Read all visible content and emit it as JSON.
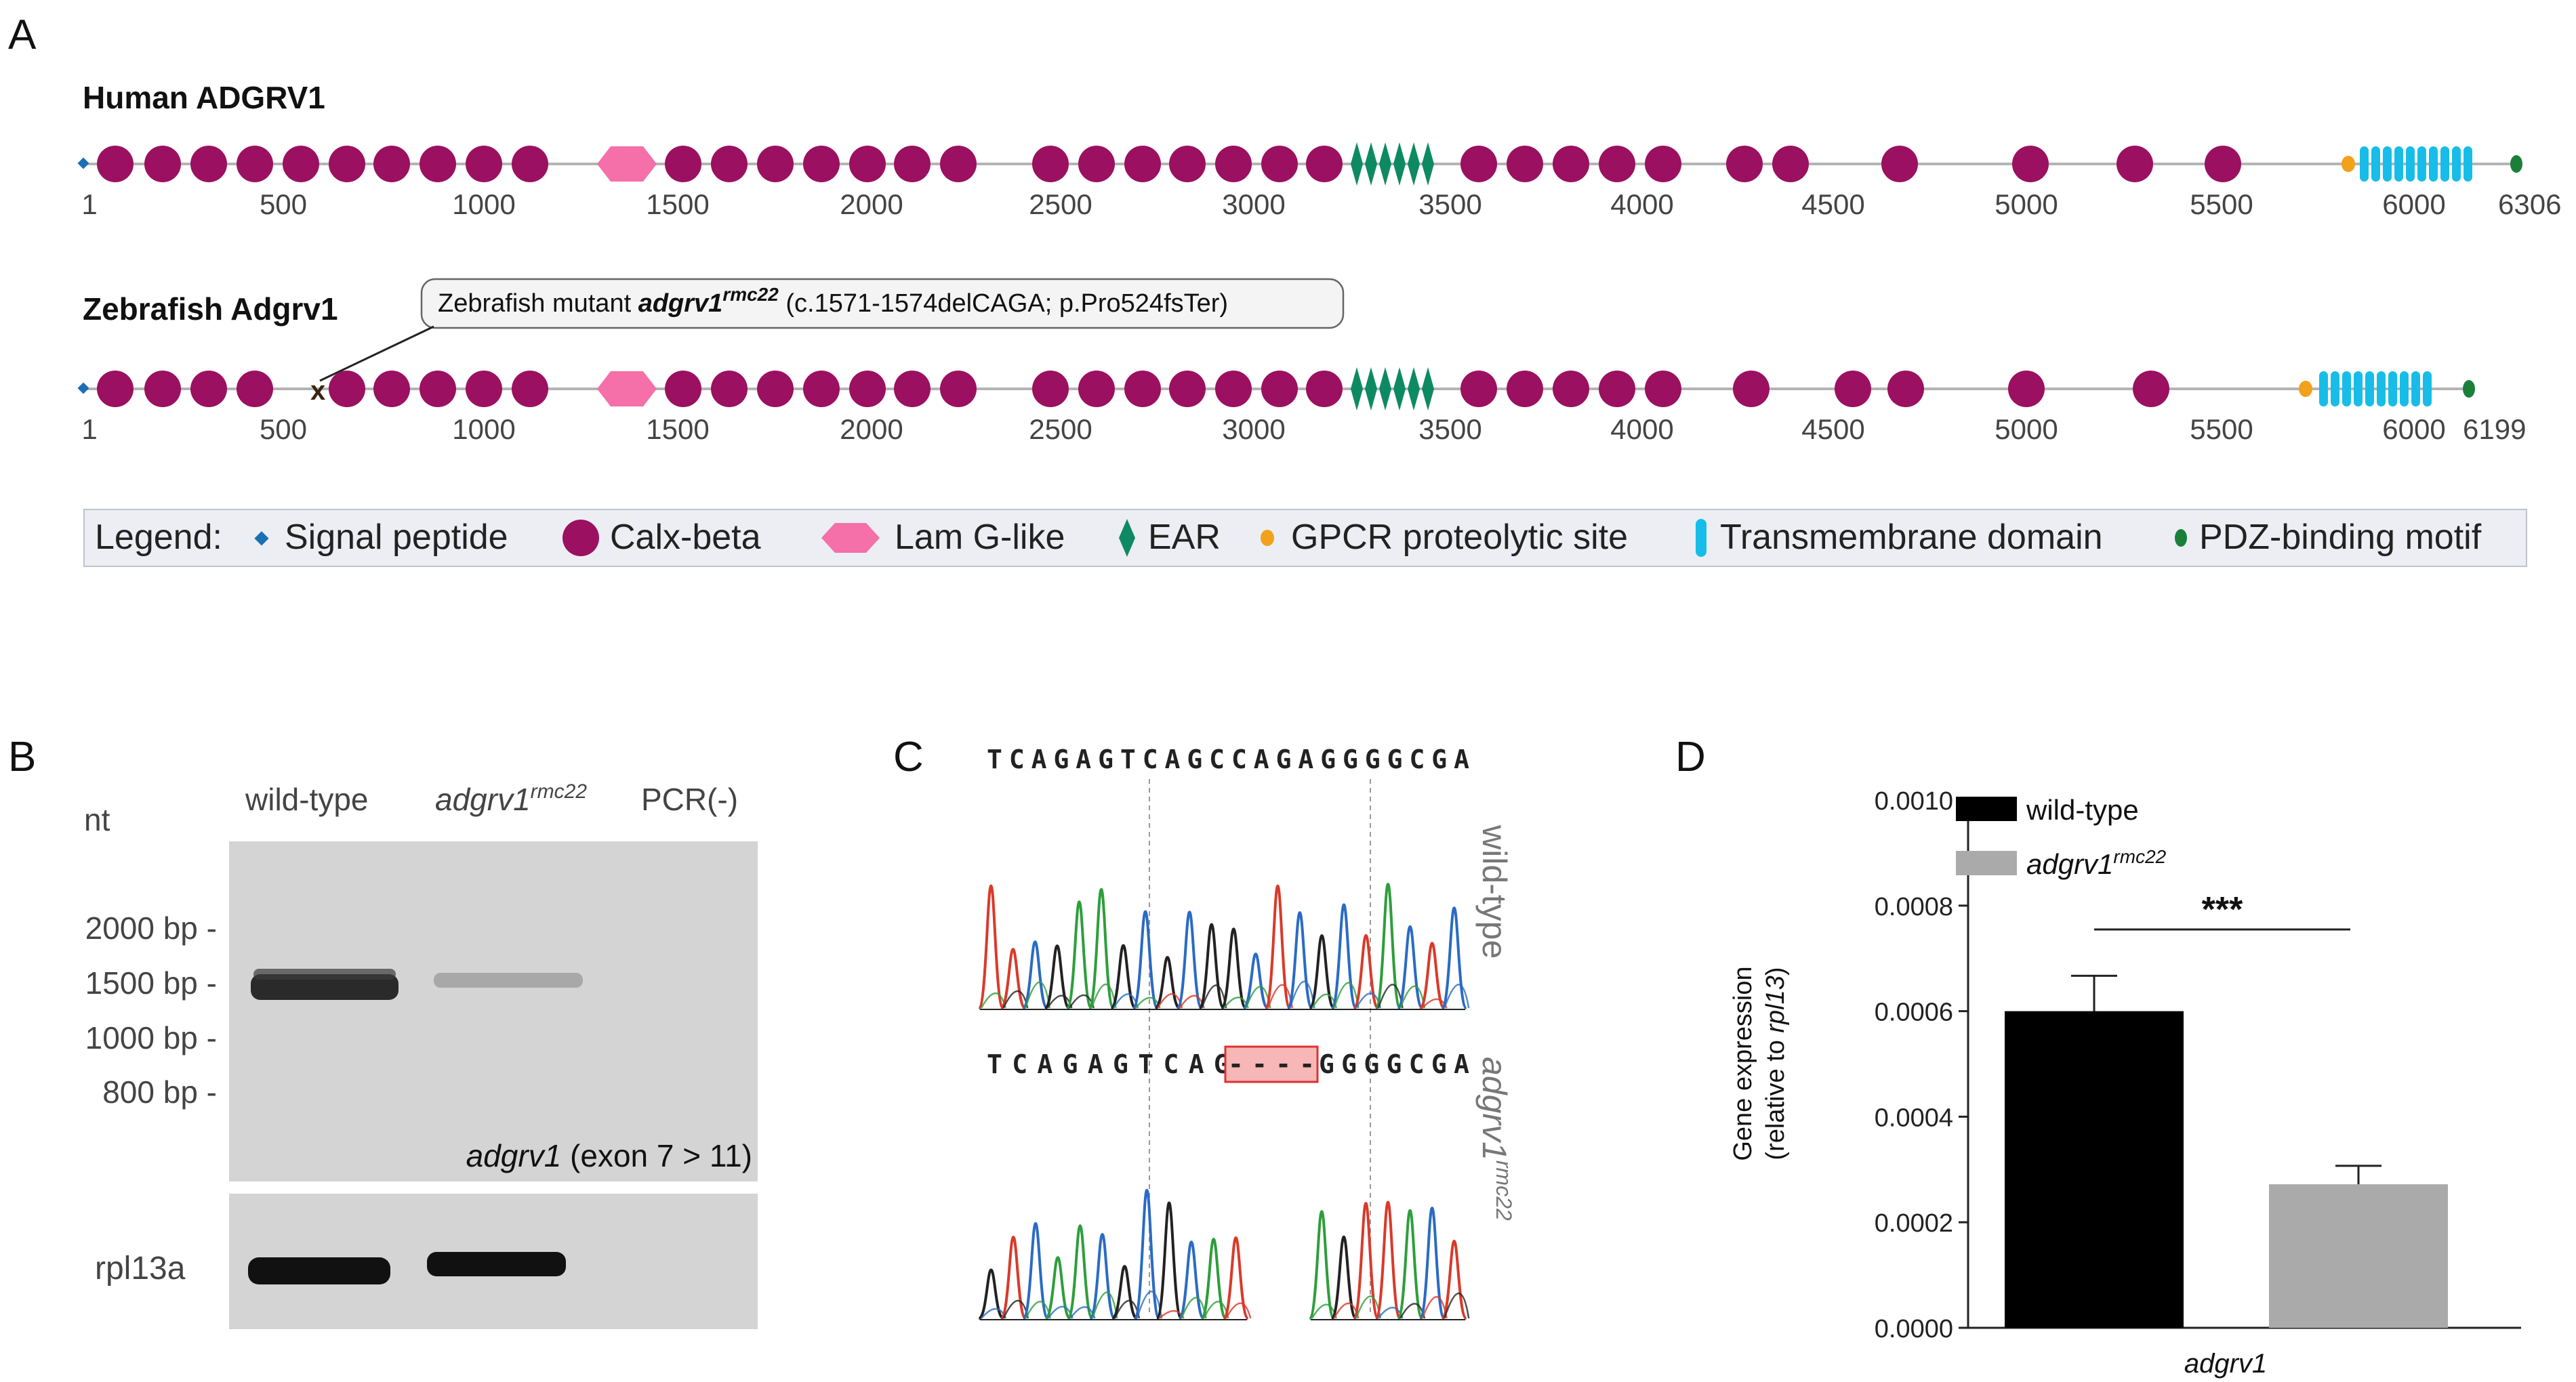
{
  "panels": {
    "a": "A",
    "b": "B",
    "c": "C",
    "d": "D"
  },
  "colors": {
    "calx": "#9b1060",
    "lamg": "#f56fa8",
    "ear": "#0e8a62",
    "signal": "#1a6fb5",
    "gpcr": "#f2a11c",
    "tm": "#17bde8",
    "pdz": "#1b7f3a",
    "backbone": "#b4b4b4",
    "legend_bg": "#eceef3",
    "wt_bar": "#000000",
    "mut_bar": "#aaaaaa"
  },
  "panel_a": {
    "human": {
      "title": "Human ADGRV1",
      "length_label": "6306",
      "ticks": [
        "1",
        "500",
        "1000",
        "1500",
        "2000",
        "2500",
        "3000",
        "3500",
        "4000",
        "4500",
        "5000",
        "5500",
        "6000"
      ]
    },
    "zebrafish": {
      "title": "Zebrafish Adgrv1",
      "length_label": "6199",
      "ticks": [
        "1",
        "500",
        "1000",
        "1500",
        "2000",
        "2500",
        "3000",
        "3500",
        "4000",
        "4500",
        "5000",
        "5500",
        "6000"
      ],
      "mutation_mark": "x",
      "callout_prefix": "Zebrafish mutant ",
      "callout_gene": "adgrv1",
      "callout_allele": "rmc22",
      "callout_suffix": " (c.1571-1574delCAGA; p.Pro524fsTer)"
    },
    "legend": {
      "title": "Legend:",
      "items": [
        "Signal peptide",
        "Calx-beta",
        "Lam G-like",
        "EAR",
        "GPCR proteolytic site",
        "Transmembrane domain",
        "PDZ-binding motif"
      ]
    }
  },
  "panel_b": {
    "unit_label": "nt",
    "lanes": [
      "wild-type",
      "adgrv1",
      "PCR(-)"
    ],
    "lane_superscript": "rmc22",
    "ladder": [
      "2000 bp -",
      "1500 bp -",
      "1000 bp -",
      "800 bp -"
    ],
    "gel_gene": "adgrv1",
    "gel_caption": " (exon 7 > 11)",
    "control_label": "rpl13a"
  },
  "panel_c": {
    "wt_sequence": "TCAGAGTCAGCCAGAGGGGCGA",
    "mut_prefix": "TCAGAGTCAGC",
    "mut_deletion": "----",
    "mut_suffix": "GGGGCGA",
    "wt_label": "wild-type",
    "mut_label": "adgrv1",
    "mut_superscript": "rmc22"
  },
  "chart_data": {
    "type": "bar",
    "categories": [
      "wild-type",
      "adgrv1 rmc22"
    ],
    "values": [
      0.0006,
      0.000272
    ],
    "errors": [
      6.7e-05,
      3.5e-05
    ],
    "legend": [
      "wild-type",
      "adgrv1"
    ],
    "legend_superscript": "rmc22",
    "xlabel": "adgrv1",
    "ylabel_line1": "Gene expression",
    "ylabel_line2_prefix": "(relative to ",
    "ylabel_line2_gene": "rpl13",
    "ylabel_line2_suffix": ")",
    "ylim": [
      0,
      0.001
    ],
    "yticks": [
      "0.0000",
      "0.0002",
      "0.0004",
      "0.0006",
      "0.0008",
      "0.0010"
    ],
    "significance": "***"
  }
}
